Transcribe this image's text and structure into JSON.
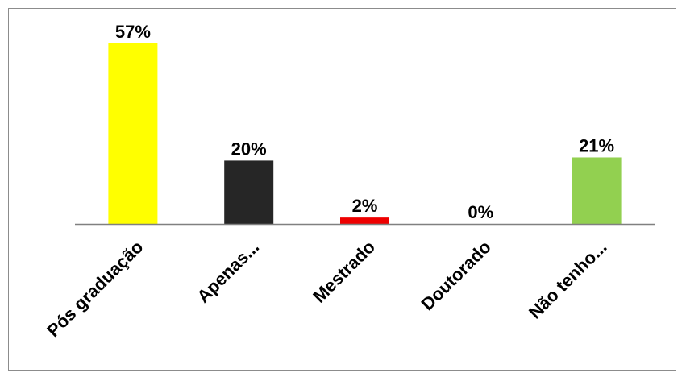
{
  "chart_data": {
    "type": "bar",
    "categories": [
      "Pós graduação",
      "Apenas...",
      "Mestrado",
      "Doutorado",
      "Não tenho..."
    ],
    "values": [
      57,
      20,
      2,
      0,
      21
    ],
    "value_labels": [
      "57%",
      "20%",
      "2%",
      "0%",
      "21%"
    ],
    "unit": "%",
    "ylim": [
      0,
      57
    ],
    "grid": false,
    "legend": "none",
    "colors": [
      "#FFFF00",
      "#262626",
      "#EE0000",
      "#7F7F7F",
      "#92D050"
    ],
    "axis_color": "#808080"
  }
}
